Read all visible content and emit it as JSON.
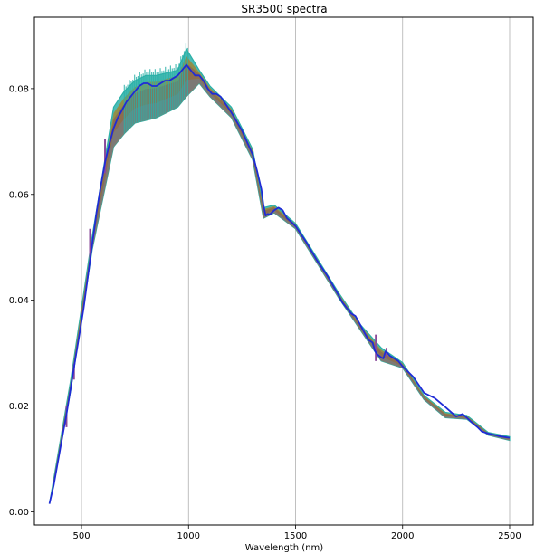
{
  "chart_data": {
    "type": "line",
    "title": "SR3500 spectra",
    "xlabel": "Wavelength (nm)",
    "ylabel": "",
    "xlim": [
      280,
      2610
    ],
    "ylim": [
      -0.0025,
      0.0935
    ],
    "xticks": [
      500,
      1000,
      1500,
      2000,
      2500
    ],
    "xtick_labels": [
      "500",
      "1000",
      "1500",
      "2000",
      "2500"
    ],
    "yticks": [
      0.0,
      0.02,
      0.04,
      0.06,
      0.08
    ],
    "ytick_labels": [
      "0.00",
      "0.02",
      "0.04",
      "0.06",
      "0.08"
    ],
    "grid": "x-vertical-lines",
    "colors": {
      "mean": "#1f2bd6",
      "band_brown": "#8c6d4f",
      "band_olive": "#9a8a3c",
      "band_teal": "#2bb0a8",
      "band_purple": "#8a4a9a",
      "grid": "#b0b0b0",
      "axis": "#000000"
    },
    "series": [
      {
        "role": "mean",
        "x": [
          350,
          370,
          390,
          410,
          430,
          450,
          470,
          490,
          510,
          530,
          550,
          570,
          590,
          610,
          630,
          650,
          670,
          690,
          710,
          730,
          750,
          770,
          790,
          810,
          830,
          850,
          870,
          890,
          910,
          930,
          950,
          970,
          990,
          1010,
          1030,
          1050,
          1070,
          1090,
          1110,
          1130,
          1150,
          1200,
          1250,
          1300,
          1320,
          1340,
          1350,
          1360,
          1370,
          1380,
          1400,
          1420,
          1440,
          1460,
          1480,
          1500,
          1550,
          1600,
          1650,
          1700,
          1720,
          1740,
          1760,
          1780,
          1800,
          1820,
          1840,
          1860,
          1870,
          1880,
          1890,
          1900,
          1910,
          1920,
          1930,
          1940,
          1960,
          1980,
          2000,
          2050,
          2100,
          2150,
          2200,
          2250,
          2280,
          2300,
          2320,
          2350,
          2370,
          2400,
          2450,
          2500
        ],
        "y": [
          0.0015,
          0.005,
          0.0095,
          0.014,
          0.0185,
          0.0235,
          0.0285,
          0.0335,
          0.0385,
          0.0445,
          0.0505,
          0.0565,
          0.0615,
          0.066,
          0.0695,
          0.0725,
          0.0745,
          0.076,
          0.0775,
          0.0785,
          0.0795,
          0.0805,
          0.081,
          0.081,
          0.0805,
          0.0805,
          0.081,
          0.0815,
          0.0815,
          0.082,
          0.0825,
          0.0835,
          0.0845,
          0.0835,
          0.0825,
          0.0825,
          0.0815,
          0.08,
          0.079,
          0.079,
          0.0785,
          0.0755,
          0.072,
          0.0675,
          0.0645,
          0.061,
          0.058,
          0.056,
          0.0563,
          0.0562,
          0.057,
          0.0575,
          0.057,
          0.0555,
          0.0548,
          0.054,
          0.051,
          0.0475,
          0.0445,
          0.041,
          0.0395,
          0.0385,
          0.0375,
          0.037,
          0.0355,
          0.034,
          0.0325,
          0.032,
          0.0305,
          0.0298,
          0.0295,
          0.0292,
          0.029,
          0.0303,
          0.03,
          0.0295,
          0.029,
          0.0285,
          0.0275,
          0.0255,
          0.0225,
          0.0215,
          0.0198,
          0.018,
          0.0185,
          0.0178,
          0.017,
          0.016,
          0.0152,
          0.0148,
          0.0143,
          0.014
        ]
      }
    ],
    "band": {
      "role": "spread of individual spectra",
      "x": [
        350,
        450,
        550,
        650,
        700,
        750,
        800,
        850,
        900,
        950,
        990,
        1050,
        1100,
        1200,
        1300,
        1350,
        1400,
        1500,
        1600,
        1700,
        1800,
        1900,
        2000,
        2100,
        2200,
        2300,
        2400,
        2500
      ],
      "y_low": [
        0.0015,
        0.023,
        0.0495,
        0.069,
        0.0715,
        0.0735,
        0.074,
        0.0745,
        0.0755,
        0.0765,
        0.0785,
        0.081,
        0.0785,
        0.0745,
        0.0665,
        0.0555,
        0.0565,
        0.0535,
        0.047,
        0.0405,
        0.0345,
        0.0285,
        0.0272,
        0.0212,
        0.0178,
        0.0175,
        0.0145,
        0.0135
      ],
      "y_high": [
        0.0015,
        0.025,
        0.052,
        0.0765,
        0.0795,
        0.0815,
        0.0825,
        0.0825,
        0.083,
        0.0835,
        0.0875,
        0.0835,
        0.0805,
        0.0765,
        0.0685,
        0.0575,
        0.058,
        0.0545,
        0.048,
        0.0415,
        0.0355,
        0.031,
        0.0282,
        0.022,
        0.0188,
        0.0182,
        0.015,
        0.0142
      ]
    },
    "spikes": [
      {
        "x": 430,
        "y_from": 0.016,
        "y_to": 0.02
      },
      {
        "x": 465,
        "y_from": 0.025,
        "y_to": 0.028
      },
      {
        "x": 540,
        "y_from": 0.048,
        "y_to": 0.0535
      },
      {
        "x": 610,
        "y_from": 0.064,
        "y_to": 0.0705
      },
      {
        "x": 1875,
        "y_from": 0.0285,
        "y_to": 0.0335
      },
      {
        "x": 1925,
        "y_from": 0.029,
        "y_to": 0.031
      }
    ]
  }
}
